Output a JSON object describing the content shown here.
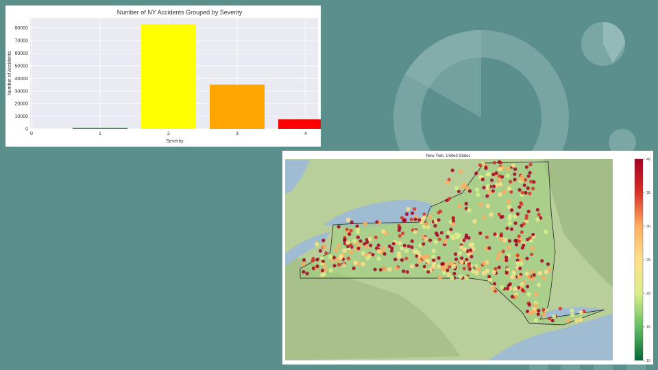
{
  "theme": {
    "background": "#5b8f8b",
    "deco_color": "#8fb8b5",
    "deco_dark": "#4a7a76"
  },
  "chart_data": [
    {
      "type": "bar",
      "title": "Number of NY Accidents Grouped by Severity",
      "xlabel": "Severity",
      "ylabel": "Number of Accidents",
      "categories": [
        "1",
        "2",
        "3",
        "4"
      ],
      "values": [
        700,
        83000,
        35000,
        7500
      ],
      "colors": [
        "#2ca02c",
        "#ffff00",
        "#ffa500",
        "#ff0000"
      ],
      "ylim": [
        0,
        88000
      ],
      "yticks": [
        "0",
        "10000",
        "20000",
        "30000",
        "40000",
        "50000",
        "60000",
        "70000",
        "80000"
      ],
      "xticks": [
        "0",
        "1",
        "2",
        "3",
        "4"
      ],
      "plot_background": "#eaeaf2",
      "grid": true
    },
    {
      "type": "heatmap",
      "title": "New York, United States",
      "colorbar": {
        "min": 10,
        "max": 40,
        "ticks": [
          "10",
          "15",
          "20",
          "25",
          "30",
          "35",
          "40"
        ],
        "colormap": [
          "#006837",
          "#66bd63",
          "#d9ef8b",
          "#fee08b",
          "#fdae61",
          "#d73027",
          "#a50026"
        ]
      }
    }
  ]
}
